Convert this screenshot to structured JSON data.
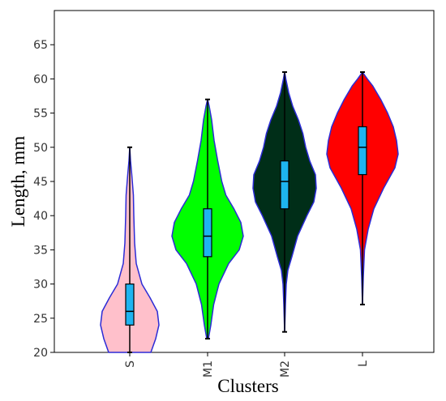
{
  "chart_data": {
    "type": "violin",
    "title": "",
    "xlabel": "Clusters",
    "ylabel": "Length, mm",
    "ylim": [
      20,
      70
    ],
    "yticks": [
      20,
      25,
      30,
      35,
      40,
      45,
      50,
      55,
      60,
      65
    ],
    "grid": false,
    "categories": [
      "S",
      "M1",
      "M2",
      "L"
    ],
    "series": [
      {
        "category": "S",
        "color": "#ffc0cb",
        "min": 20,
        "q1": 24,
        "median": 26,
        "q3": 30,
        "max": 50,
        "density": [
          [
            20,
            0.52
          ],
          [
            22,
            0.64
          ],
          [
            24,
            0.72
          ],
          [
            26,
            0.68
          ],
          [
            28,
            0.5
          ],
          [
            30,
            0.3
          ],
          [
            33,
            0.16
          ],
          [
            36,
            0.12
          ],
          [
            40,
            0.1
          ],
          [
            43,
            0.09
          ],
          [
            46,
            0.05
          ],
          [
            48,
            0.02
          ],
          [
            50,
            0.0
          ]
        ]
      },
      {
        "category": "M1",
        "color": "#00ff00",
        "min": 22,
        "q1": 34,
        "median": 37,
        "q3": 41,
        "max": 57,
        "density": [
          [
            22,
            0.02
          ],
          [
            24,
            0.08
          ],
          [
            27,
            0.15
          ],
          [
            30,
            0.28
          ],
          [
            33,
            0.52
          ],
          [
            35,
            0.78
          ],
          [
            37,
            0.88
          ],
          [
            39,
            0.82
          ],
          [
            41,
            0.65
          ],
          [
            43,
            0.45
          ],
          [
            45,
            0.35
          ],
          [
            48,
            0.25
          ],
          [
            51,
            0.16
          ],
          [
            54,
            0.1
          ],
          [
            56,
            0.04
          ],
          [
            57,
            0.0
          ]
        ]
      },
      {
        "category": "M2",
        "color": "#002e18",
        "min": 23,
        "q1": 41,
        "median": 45,
        "q3": 48,
        "max": 61,
        "density": [
          [
            23,
            0.0
          ],
          [
            27,
            0.02
          ],
          [
            30,
            0.04
          ],
          [
            32,
            0.08
          ],
          [
            34,
            0.18
          ],
          [
            37,
            0.32
          ],
          [
            40,
            0.55
          ],
          [
            42,
            0.72
          ],
          [
            44,
            0.78
          ],
          [
            46,
            0.76
          ],
          [
            48,
            0.62
          ],
          [
            50,
            0.52
          ],
          [
            52,
            0.45
          ],
          [
            54,
            0.34
          ],
          [
            56,
            0.2
          ],
          [
            58,
            0.1
          ],
          [
            60,
            0.03
          ],
          [
            61,
            0.0
          ]
        ]
      },
      {
        "category": "L",
        "color": "#ff0000",
        "min": 27,
        "q1": 46,
        "median": 50,
        "q3": 53,
        "max": 61,
        "density": [
          [
            27,
            0.0
          ],
          [
            31,
            0.02
          ],
          [
            35,
            0.05
          ],
          [
            38,
            0.14
          ],
          [
            41,
            0.28
          ],
          [
            44,
            0.52
          ],
          [
            47,
            0.8
          ],
          [
            49,
            0.88
          ],
          [
            51,
            0.84
          ],
          [
            53,
            0.76
          ],
          [
            55,
            0.62
          ],
          [
            57,
            0.45
          ],
          [
            59,
            0.25
          ],
          [
            60,
            0.12
          ],
          [
            61,
            0.0
          ]
        ]
      }
    ]
  }
}
